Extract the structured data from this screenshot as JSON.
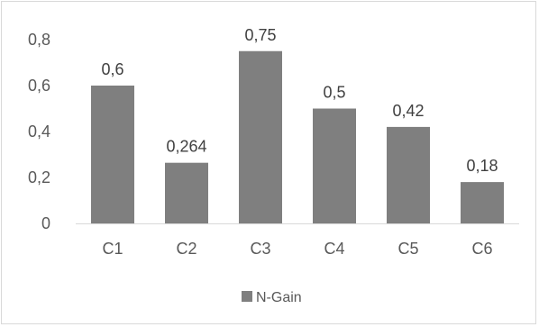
{
  "chart_data": {
    "type": "bar",
    "categories": [
      "C1",
      "C2",
      "C3",
      "C4",
      "C5",
      "C6"
    ],
    "series": [
      {
        "name": "N-Gain",
        "values": [
          0.6,
          0.264,
          0.75,
          0.5,
          0.42,
          0.18
        ],
        "color": "#7f7f7f"
      }
    ],
    "data_labels": [
      "0,6",
      "0,264",
      "0,75",
      "0,5",
      "0,42",
      "0,18"
    ],
    "yticks": [
      {
        "value": 0,
        "label": "0"
      },
      {
        "value": 0.2,
        "label": "0,2"
      },
      {
        "value": 0.4,
        "label": "0,4"
      },
      {
        "value": 0.6,
        "label": "0,6"
      },
      {
        "value": 0.8,
        "label": "0,8"
      }
    ],
    "ylim": [
      0,
      0.8
    ],
    "grid": false,
    "legend_position": "bottom",
    "title": "",
    "xlabel": "",
    "ylabel": ""
  }
}
